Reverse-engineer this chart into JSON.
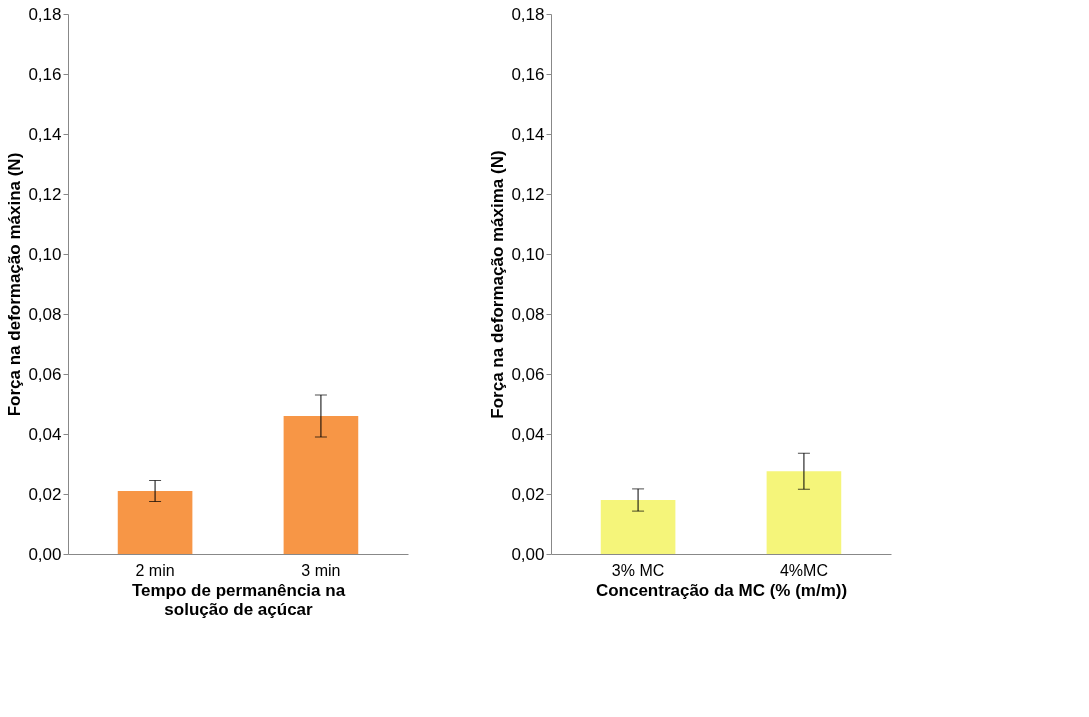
{
  "chart_data": [
    {
      "type": "bar",
      "categories": [
        "2 min",
        "3 min"
      ],
      "values": [
        0.021,
        0.046
      ],
      "errors": [
        0.0035,
        0.007
      ],
      "color": "#f79646",
      "xlabel": "Tempo de permanência na\nsolução de açúcar",
      "ylabel": "Força na deformação máxina (N)",
      "ylim": [
        0,
        0.18
      ],
      "yticks": [
        {
          "value": 0,
          "label": "0,00"
        },
        {
          "value": 0.02,
          "label": "0,02"
        },
        {
          "value": 0.04,
          "label": "0,04"
        },
        {
          "value": 0.06,
          "label": "0,06"
        },
        {
          "value": 0.08,
          "label": "0,08"
        },
        {
          "value": 0.1,
          "label": "0,10"
        },
        {
          "value": 0.12,
          "label": "0,12"
        },
        {
          "value": 0.14,
          "label": "0,14"
        },
        {
          "value": 0.16,
          "label": "0,16"
        },
        {
          "value": 0.18,
          "label": "0,18"
        }
      ]
    },
    {
      "type": "bar",
      "categories": [
        "3% MC",
        "4%MC"
      ],
      "values": [
        0.018,
        0.0276
      ],
      "errors": [
        0.0037,
        0.006
      ],
      "color": "#f5f57a",
      "xlabel": "Concentração da MC (% (m/m))",
      "ylabel": "Força na deformação máxima (N)",
      "ylim": [
        0,
        0.18
      ],
      "yticks": [
        {
          "value": 0,
          "label": "0,00"
        },
        {
          "value": 0.02,
          "label": "0,02"
        },
        {
          "value": 0.04,
          "label": "0,04"
        },
        {
          "value": 0.06,
          "label": "0,06"
        },
        {
          "value": 0.08,
          "label": "0,08"
        },
        {
          "value": 0.1,
          "label": "0,10"
        },
        {
          "value": 0.12,
          "label": "0,12"
        },
        {
          "value": 0.14,
          "label": "0,14"
        },
        {
          "value": 0.16,
          "label": "0,16"
        },
        {
          "value": 0.18,
          "label": "0,18"
        }
      ]
    }
  ]
}
